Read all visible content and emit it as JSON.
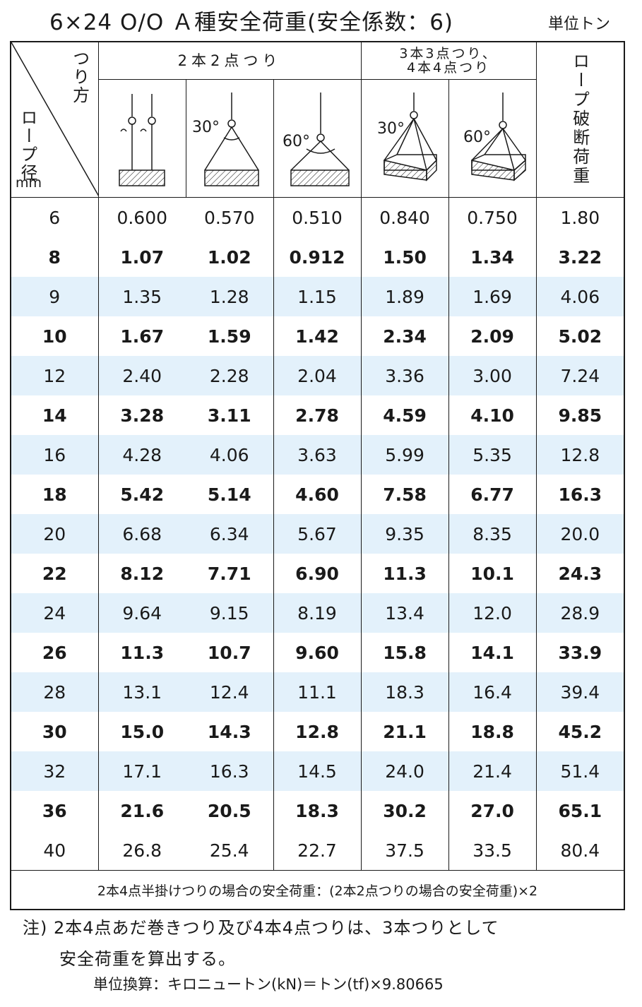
{
  "title": "6×24 O/O Ａ種安全荷重(安全係数：6)",
  "unit": "単位トン",
  "header": {
    "hang_method": "つり方",
    "rope_diameter": "ロープ径",
    "mm": "mm",
    "group_2pt": "2本2点つり",
    "group_3pt_line1": "3本3点つり、",
    "group_3pt_line2": "4本4点つり",
    "breaking_load": "ロープ破断荷重",
    "angle_30": "30°",
    "angle_60": "60°"
  },
  "rows": [
    {
      "d": "6",
      "a": "0.600",
      "b": "0.570",
      "c": "0.510",
      "e": "0.840",
      "f": "0.750",
      "g": "1.80"
    },
    {
      "d": "8",
      "a": "1.07",
      "b": "1.02",
      "c": "0.912",
      "e": "1.50",
      "f": "1.34",
      "g": "3.22"
    },
    {
      "d": "9",
      "a": "1.35",
      "b": "1.28",
      "c": "1.15",
      "e": "1.89",
      "f": "1.69",
      "g": "4.06"
    },
    {
      "d": "10",
      "a": "1.67",
      "b": "1.59",
      "c": "1.42",
      "e": "2.34",
      "f": "2.09",
      "g": "5.02"
    },
    {
      "d": "12",
      "a": "2.40",
      "b": "2.28",
      "c": "2.04",
      "e": "3.36",
      "f": "3.00",
      "g": "7.24"
    },
    {
      "d": "14",
      "a": "3.28",
      "b": "3.11",
      "c": "2.78",
      "e": "4.59",
      "f": "4.10",
      "g": "9.85"
    },
    {
      "d": "16",
      "a": "4.28",
      "b": "4.06",
      "c": "3.63",
      "e": "5.99",
      "f": "5.35",
      "g": "12.8"
    },
    {
      "d": "18",
      "a": "5.42",
      "b": "5.14",
      "c": "4.60",
      "e": "7.58",
      "f": "6.77",
      "g": "16.3"
    },
    {
      "d": "20",
      "a": "6.68",
      "b": "6.34",
      "c": "5.67",
      "e": "9.35",
      "f": "8.35",
      "g": "20.0"
    },
    {
      "d": "22",
      "a": "8.12",
      "b": "7.71",
      "c": "6.90",
      "e": "11.3",
      "f": "10.1",
      "g": "24.3"
    },
    {
      "d": "24",
      "a": "9.64",
      "b": "9.15",
      "c": "8.19",
      "e": "13.4",
      "f": "12.0",
      "g": "28.9"
    },
    {
      "d": "26",
      "a": "11.3",
      "b": "10.7",
      "c": "9.60",
      "e": "15.8",
      "f": "14.1",
      "g": "33.9"
    },
    {
      "d": "28",
      "a": "13.1",
      "b": "12.4",
      "c": "11.1",
      "e": "18.3",
      "f": "16.4",
      "g": "39.4"
    },
    {
      "d": "30",
      "a": "15.0",
      "b": "14.3",
      "c": "12.8",
      "e": "21.1",
      "f": "18.8",
      "g": "45.2"
    },
    {
      "d": "32",
      "a": "17.1",
      "b": "16.3",
      "c": "14.5",
      "e": "24.0",
      "f": "21.4",
      "g": "51.4"
    },
    {
      "d": "36",
      "a": "21.6",
      "b": "20.5",
      "c": "18.3",
      "e": "30.2",
      "f": "27.0",
      "g": "65.1"
    },
    {
      "d": "40",
      "a": "26.8",
      "b": "25.4",
      "c": "22.7",
      "e": "37.5",
      "f": "33.5",
      "g": "80.4"
    }
  ],
  "row_styles": [
    "plain",
    "bold",
    "shade",
    "bold",
    "shade",
    "bold",
    "shade",
    "bold",
    "shade",
    "bold",
    "shade",
    "bold",
    "shade",
    "bold",
    "shade",
    "bold",
    "plain"
  ],
  "footer_row": "2本4点半掛けつりの場合の安全荷重：(2本2点つりの場合の安全荷重)×2",
  "notes": {
    "line1": "注) 2本4点あだ巻きつり及び4本4点つりは、3本つりとして",
    "line2": "安全荷重を算出する。",
    "line3": "単位換算：キロニュートン(kN)＝トン(tf)×9.80665"
  },
  "colors": {
    "shade": "#e3f1fb",
    "ink": "#1a1a1a"
  }
}
